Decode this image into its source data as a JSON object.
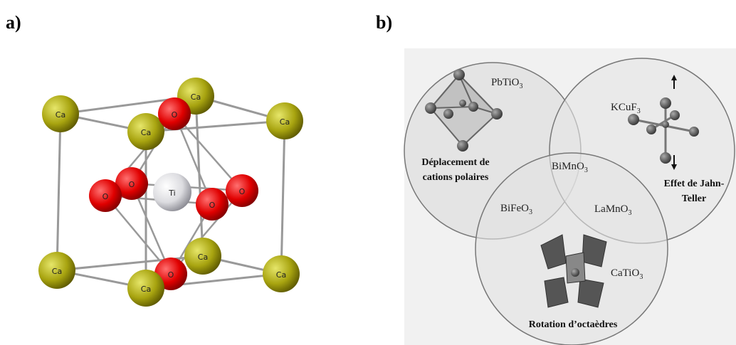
{
  "panel_a": {
    "label": "a)",
    "atoms": [
      {
        "label": "Ca"
      },
      {
        "label": "Ca"
      },
      {
        "label": "Ca"
      },
      {
        "label": "Ca"
      },
      {
        "label": "O"
      },
      {
        "label": "O"
      },
      {
        "label": "O"
      },
      {
        "label": "Ti"
      },
      {
        "label": "O"
      },
      {
        "label": "O"
      },
      {
        "label": "O"
      },
      {
        "label": "Ca"
      },
      {
        "label": "Ca"
      },
      {
        "label": "Ca"
      },
      {
        "label": "Ca"
      }
    ]
  },
  "panel_b": {
    "label": "b)",
    "compounds": [
      {
        "base": "PbTiO",
        "sub": "3"
      },
      {
        "base": "KCuF",
        "sub": "3"
      },
      {
        "base": "BiMnO",
        "sub": "3"
      },
      {
        "base": "BiFeO",
        "sub": "3"
      },
      {
        "base": "LaMnO",
        "sub": "3"
      },
      {
        "base": "CaTiO",
        "sub": "3"
      }
    ],
    "properties": [
      [
        "Déplacement de",
        "cations polaires"
      ],
      [
        "Effet de Jahn-",
        "Teller"
      ],
      [
        "Rotation d’octaèdres"
      ]
    ]
  }
}
